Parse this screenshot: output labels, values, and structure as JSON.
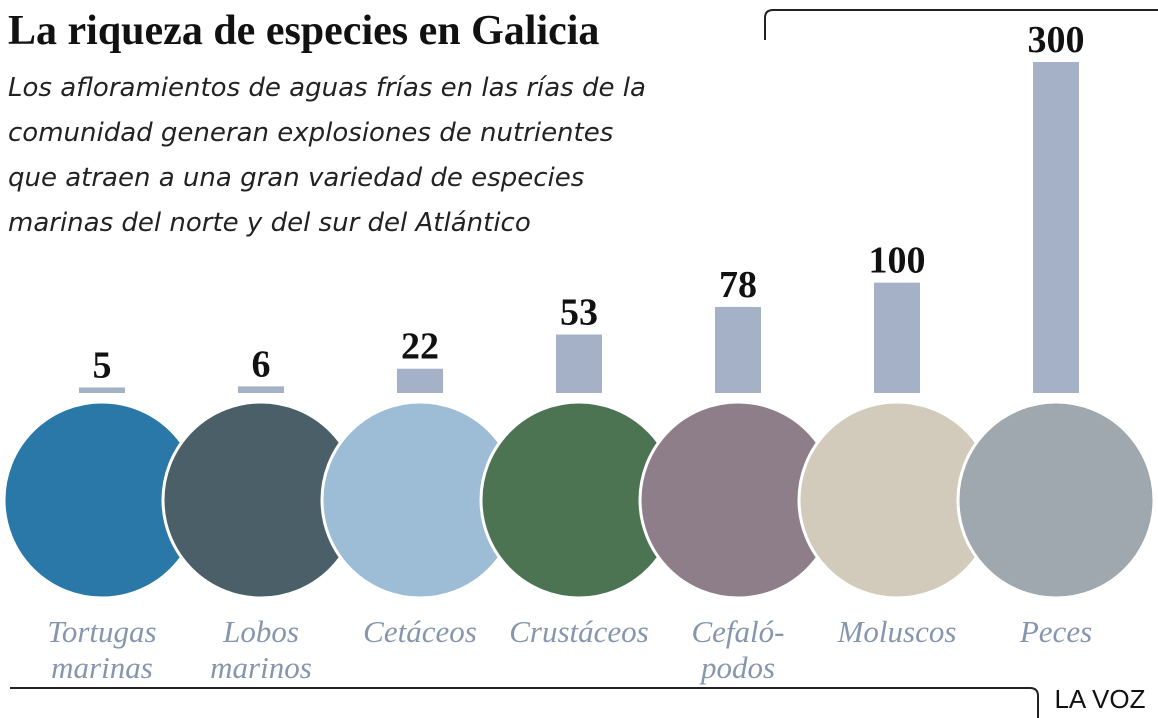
{
  "chart_data": {
    "type": "bar",
    "title": "La riqueza de especies en Galicia",
    "subtitle": [
      "Los afloramientos de aguas frías en las rías de la",
      "comunidad generan explosiones de nutrientes",
      "que atraen a una gran variedad de especies",
      "marinas del norte y del sur del Atlántico"
    ],
    "categories": [
      [
        "Tortugas",
        "marinas"
      ],
      [
        "Lobos",
        "marinos"
      ],
      [
        "Cetáceos"
      ],
      [
        "Crustáceos"
      ],
      [
        "Cefaló-",
        "podos"
      ],
      [
        "Moluscos"
      ],
      [
        "Peces"
      ]
    ],
    "values": [
      5,
      6,
      22,
      53,
      78,
      100,
      300
    ],
    "color": "#a4b1c7",
    "source": "LA VOZ"
  }
}
